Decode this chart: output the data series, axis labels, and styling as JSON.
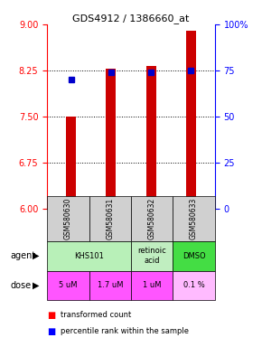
{
  "title": "GDS4912 / 1386660_at",
  "samples": [
    "GSM580630",
    "GSM580631",
    "GSM580632",
    "GSM580633"
  ],
  "bar_values": [
    7.5,
    8.28,
    8.32,
    8.9
  ],
  "bar_bottom": [
    6.0,
    6.0,
    6.0,
    6.0
  ],
  "percentile_values": [
    8.1,
    8.22,
    8.22,
    8.25
  ],
  "ylim": [
    6.0,
    9.0
  ],
  "yticks_left": [
    6,
    6.75,
    7.5,
    8.25,
    9
  ],
  "yticks_right": [
    0,
    25,
    50,
    75,
    100
  ],
  "bar_color": "#cc0000",
  "dot_color": "#0000cc",
  "agent_spans_data": [
    [
      0,
      1,
      "KHS101",
      "#b8f0b8"
    ],
    [
      2,
      2,
      "retinoic\nacid",
      "#c0eec0"
    ],
    [
      3,
      3,
      "DMSO",
      "#44dd44"
    ]
  ],
  "dose_labels": [
    "5 uM",
    "1.7 uM",
    "1 uM",
    "0.1 %"
  ],
  "dose_colors": [
    "#ff55ff",
    "#ff55ff",
    "#ff55ff",
    "#ffbbff"
  ],
  "sample_bg": "#d0d0d0"
}
